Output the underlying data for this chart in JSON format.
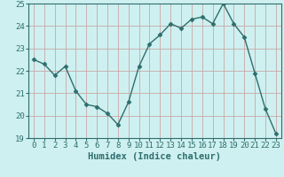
{
  "x": [
    0,
    1,
    2,
    3,
    4,
    5,
    6,
    7,
    8,
    9,
    10,
    11,
    12,
    13,
    14,
    15,
    16,
    17,
    18,
    19,
    20,
    21,
    22,
    23
  ],
  "y": [
    22.5,
    22.3,
    21.8,
    22.2,
    21.1,
    20.5,
    20.4,
    20.1,
    19.6,
    20.6,
    22.2,
    23.2,
    23.6,
    24.1,
    23.9,
    24.3,
    24.4,
    24.1,
    25.0,
    24.1,
    23.5,
    21.9,
    20.3,
    19.2
  ],
  "line_color": "#2d6e6e",
  "marker": "D",
  "marker_size": 2.5,
  "bg_color": "#cff0f0",
  "grid_color": "#c8a8a8",
  "xlabel": "Humidex (Indice chaleur)",
  "xlim": [
    -0.5,
    23.5
  ],
  "ylim": [
    19,
    25
  ],
  "yticks": [
    19,
    20,
    21,
    22,
    23,
    24,
    25
  ],
  "xticks": [
    0,
    1,
    2,
    3,
    4,
    5,
    6,
    7,
    8,
    9,
    10,
    11,
    12,
    13,
    14,
    15,
    16,
    17,
    18,
    19,
    20,
    21,
    22,
    23
  ],
  "xlabel_fontsize": 7.5,
  "tick_fontsize": 6.5,
  "line_width": 1.0
}
